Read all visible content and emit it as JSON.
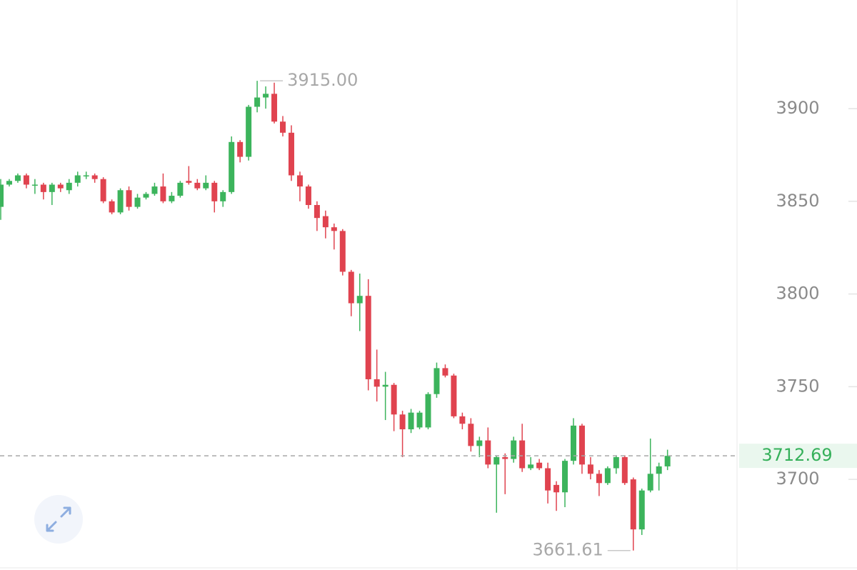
{
  "chart_data": {
    "type": "candlestick",
    "ylim": [
      3651.1,
      3958.6
    ],
    "yticks": [
      3700,
      3750,
      3800,
      3850,
      3900
    ],
    "up_color": "#3cb45c",
    "down_color": "#e0434f",
    "open": [
      3847,
      3859,
      3861,
      3864,
      3859,
      3859,
      3855,
      3859,
      3856,
      3860,
      3864,
      3864,
      3862,
      3850,
      3844,
      3856,
      3847,
      3852,
      3854,
      3858,
      3850,
      3853,
      3861,
      3860,
      3857,
      3860,
      3850,
      3855,
      3882,
      3874,
      3901,
      3906,
      3908,
      3893,
      3887,
      3864,
      3858,
      3848,
      3842,
      3836,
      3834,
      3812,
      3795,
      3799,
      3754,
      3750,
      3751,
      3735,
      3727,
      3728,
      3728,
      3746,
      3760,
      3756,
      3734,
      3730,
      3718,
      3721,
      3708,
      3712,
      3711,
      3721,
      3706,
      3709,
      3706,
      3697,
      3693,
      3710,
      3729,
      3708,
      3703,
      3698,
      3706,
      3712,
      3700,
      3673,
      3694,
      3703,
      3707
    ],
    "high": [
      3862,
      3862,
      3865,
      3865,
      3862,
      3860,
      3860,
      3860,
      3862,
      3866,
      3866,
      3865,
      3863,
      3851,
      3857,
      3858,
      3854,
      3855,
      3860,
      3865,
      3855,
      3861,
      3869,
      3862,
      3864,
      3861,
      3856,
      3885,
      3883,
      3902,
      3915,
      3912,
      3914,
      3896,
      3891,
      3866,
      3859,
      3850,
      3845,
      3838,
      3835,
      3813,
      3811,
      3808,
      3770,
      3758,
      3752,
      3737,
      3738,
      3737,
      3747,
      3763,
      3762,
      3757,
      3736,
      3733,
      3723,
      3728,
      3713,
      3714,
      3723,
      3730,
      3712,
      3711,
      3709,
      3699,
      3711,
      3733,
      3730,
      3712,
      3705,
      3707,
      3713,
      3713,
      3701,
      3695,
      3722,
      3709,
      3716
    ],
    "low": [
      3840,
      3858,
      3860,
      3857,
      3854,
      3851,
      3848,
      3855,
      3854,
      3858,
      3862,
      3860,
      3849,
      3843,
      3843,
      3845,
      3846,
      3851,
      3853,
      3849,
      3849,
      3852,
      3859,
      3856,
      3856,
      3844,
      3847,
      3854,
      3871,
      3872,
      3898,
      3900,
      3892,
      3885,
      3861,
      3850,
      3846,
      3834,
      3830,
      3824,
      3810,
      3788,
      3780,
      3748,
      3742,
      3732,
      3726,
      3712,
      3725,
      3727,
      3727,
      3744,
      3755,
      3733,
      3727,
      3715,
      3712,
      3706,
      3682,
      3692,
      3709,
      3704,
      3705,
      3705,
      3687,
      3683,
      3685,
      3708,
      3703,
      3700,
      3691,
      3697,
      3703,
      3697,
      3661.61,
      3670,
      3693,
      3694,
      3705
    ],
    "close": [
      3859,
      3861,
      3864,
      3859,
      3859,
      3855,
      3859,
      3857,
      3860,
      3864,
      3864,
      3862,
      3850,
      3844,
      3856,
      3847,
      3852,
      3854,
      3858,
      3850,
      3853,
      3860,
      3860,
      3857,
      3860,
      3850,
      3855,
      3882,
      3874,
      3901,
      3906,
      3908,
      3893,
      3887,
      3864,
      3858,
      3848,
      3841,
      3836,
      3834,
      3812,
      3795,
      3799,
      3754,
      3750,
      3751,
      3735,
      3727,
      3736,
      3736,
      3746,
      3760,
      3756,
      3734,
      3730,
      3718,
      3721,
      3708,
      3712,
      3711,
      3721,
      3706,
      3708,
      3706,
      3694,
      3693,
      3710,
      3729,
      3708,
      3703,
      3698,
      3706,
      3712,
      3698,
      3673,
      3694,
      3703,
      3707,
      3712.69
    ],
    "max_marker": {
      "value": 3915,
      "label": "3915.00"
    },
    "min_marker": {
      "value": 3661.61,
      "label": "3661.61"
    },
    "last_price": {
      "value": 3712.69,
      "label": "3712.69"
    }
  }
}
